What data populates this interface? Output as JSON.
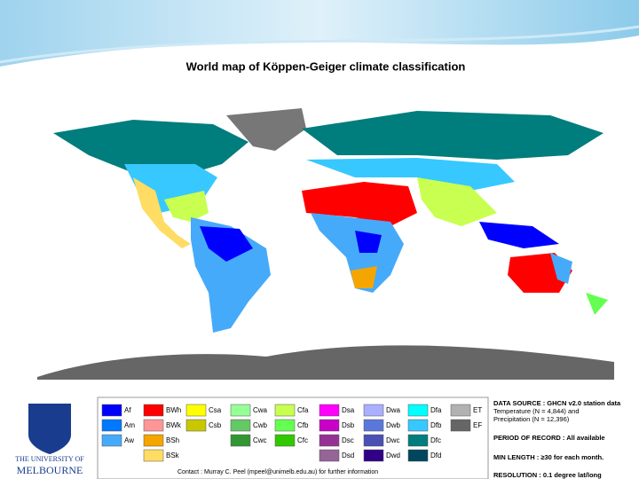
{
  "title": "World map of Köppen-Geiger climate classification",
  "legend": {
    "columns": [
      {
        "items": [
          {
            "code": "Af",
            "color": "#0000fe"
          },
          {
            "code": "Am",
            "color": "#0078ff"
          },
          {
            "code": "Aw",
            "color": "#46aafa"
          }
        ]
      },
      {
        "items": [
          {
            "code": "BWh",
            "color": "#ff0000"
          },
          {
            "code": "BWk",
            "color": "#ff9696"
          },
          {
            "code": "BSh",
            "color": "#f5a500"
          },
          {
            "code": "BSk",
            "color": "#ffdc64"
          }
        ]
      },
      {
        "items": [
          {
            "code": "Csa",
            "color": "#ffff00"
          },
          {
            "code": "Csb",
            "color": "#c8c800"
          }
        ]
      },
      {
        "items": [
          {
            "code": "Cwa",
            "color": "#96ff96"
          },
          {
            "code": "Cwb",
            "color": "#64c864"
          },
          {
            "code": "Cwc",
            "color": "#329632"
          }
        ]
      },
      {
        "items": [
          {
            "code": "Cfa",
            "color": "#c8ff50"
          },
          {
            "code": "Cfb",
            "color": "#64ff50"
          },
          {
            "code": "Cfc",
            "color": "#32c800"
          }
        ]
      },
      {
        "items": [
          {
            "code": "Dsa",
            "color": "#ff00ff"
          },
          {
            "code": "Dsb",
            "color": "#c800c8"
          },
          {
            "code": "Dsc",
            "color": "#963296"
          },
          {
            "code": "Dsd",
            "color": "#966496"
          }
        ]
      },
      {
        "items": [
          {
            "code": "Dwa",
            "color": "#aaafff"
          },
          {
            "code": "Dwb",
            "color": "#5a78dc"
          },
          {
            "code": "Dwc",
            "color": "#4b50b4"
          },
          {
            "code": "Dwd",
            "color": "#320087"
          }
        ]
      },
      {
        "items": [
          {
            "code": "Dfa",
            "color": "#00ffff"
          },
          {
            "code": "Dfb",
            "color": "#37c8ff"
          },
          {
            "code": "Dfc",
            "color": "#007d7d"
          },
          {
            "code": "Dfd",
            "color": "#00465f"
          }
        ]
      },
      {
        "items": [
          {
            "code": "ET",
            "color": "#b2b2b2"
          },
          {
            "code": "EF",
            "color": "#666666"
          }
        ]
      }
    ],
    "contact": "Contact : Murray C. Peel (mpeel@unimelb.edu.au) for further information"
  },
  "info": [
    "DATA SOURCE : GHCN v2.0 station data",
    "Temperature (N = 4,844) and",
    "Precipitation (N = 12,396)",
    "PERIOD OF RECORD : All available",
    "MIN LENGTH : ≥30 for each month.",
    "RESOLUTION : 0.1 degree lat/long"
  ],
  "university": {
    "line1": "THE UNIVERSITY OF",
    "line2": "MELBOURNE"
  }
}
